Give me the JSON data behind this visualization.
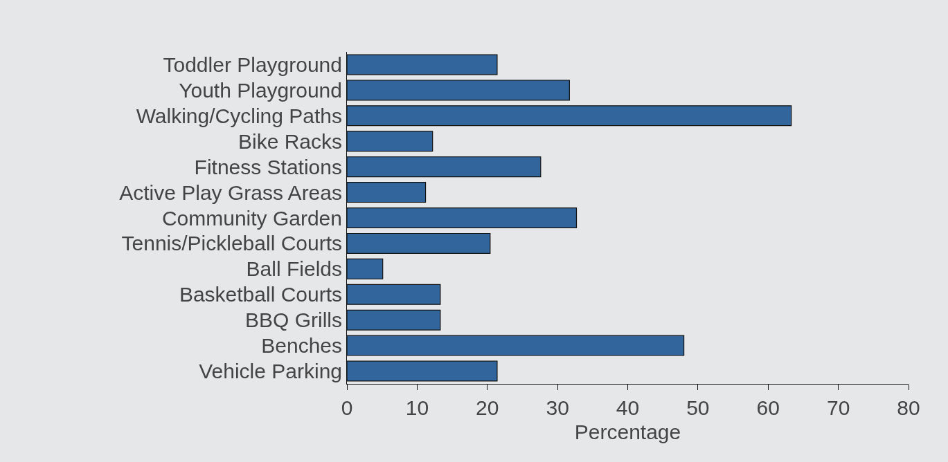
{
  "chart_data": {
    "type": "bar",
    "orientation": "horizontal",
    "xlabel": "Percentage",
    "categories": [
      "Toddler Playground",
      "Youth Playground",
      "Walking/Cycling Paths",
      "Bike Racks",
      "Fitness Stations",
      "Active Play Grass Areas",
      "Community Garden",
      "Tennis/Pickleball Courts",
      "Ball Fields",
      "Basketball Courts",
      "BBQ Grills",
      "Benches",
      "Vehicle Parking"
    ],
    "values": [
      21.4,
      31.7,
      63.3,
      12.2,
      27.6,
      11.2,
      32.7,
      20.4,
      5.1,
      13.3,
      13.3,
      48.0,
      21.4
    ],
    "color": "#31659c",
    "xlim": [
      0,
      80
    ],
    "xticks": [
      0,
      10,
      20,
      30,
      40,
      50,
      60,
      70,
      80
    ],
    "grid": false,
    "legend": false
  }
}
